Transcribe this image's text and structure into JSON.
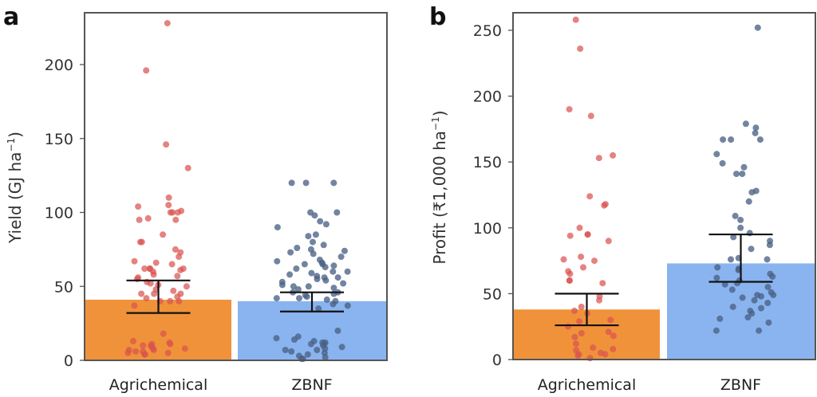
{
  "chart_data": [
    {
      "panel": "a",
      "type": "bar",
      "subtype": "bar with jittered points and error bars",
      "title": "",
      "xlabel": "",
      "ylabel": "Yield (GJ ha⁻¹)",
      "ylabel_parts": {
        "main": "Yield (GJ ha",
        "sup": "−1",
        "close": ")"
      },
      "ylim": [
        0,
        230
      ],
      "yticks": [
        0,
        50,
        100,
        150,
        200
      ],
      "grid": false,
      "legend": "none",
      "categories": [
        "Agrichemical",
        "ZBNF"
      ],
      "series": [
        {
          "name": "Agrichemical",
          "bar_value": 41,
          "error_low": 32,
          "error_high": 54,
          "bar_color": "#f0923a",
          "point_color": "#d9534f",
          "points": [
            228,
            196,
            146,
            130,
            110,
            105,
            104,
            101,
            100,
            100,
            100,
            96,
            95,
            95,
            85,
            80,
            80,
            75,
            73,
            70,
            67,
            66,
            65,
            62,
            62,
            62,
            62,
            61,
            60,
            58,
            57,
            56,
            55,
            53,
            52,
            51,
            50,
            48,
            47,
            45,
            45,
            45,
            43,
            42,
            40,
            40,
            40,
            37,
            18,
            13,
            12,
            11,
            11,
            10,
            10,
            9,
            8,
            8,
            7,
            7,
            6,
            6,
            5,
            5,
            4,
            4
          ]
        },
        {
          "name": "ZBNF",
          "bar_value": 40,
          "error_low": 33,
          "error_high": 46,
          "bar_color": "#8ab4ef",
          "point_color": "#4a6185",
          "points": [
            120,
            120,
            120,
            100,
            98,
            100,
            94,
            92,
            90,
            85,
            84,
            80,
            78,
            76,
            75,
            74,
            73,
            72,
            70,
            68,
            67,
            66,
            65,
            65,
            64,
            63,
            62,
            60,
            60,
            59,
            58,
            57,
            56,
            56,
            55,
            54,
            53,
            52,
            51,
            50,
            50,
            49,
            48,
            46,
            46,
            45,
            44,
            43,
            42,
            42,
            41,
            40,
            38,
            37,
            35,
            20,
            16,
            15,
            14,
            13,
            12,
            12,
            11,
            11,
            10,
            9,
            8,
            7,
            7,
            6,
            5,
            4,
            3,
            2,
            1,
            1
          ]
        }
      ]
    },
    {
      "panel": "b",
      "type": "bar",
      "subtype": "bar with jittered points and error bars",
      "title": "",
      "xlabel": "",
      "ylabel": "Profit (₹1,000 ha⁻¹)",
      "ylabel_parts": {
        "main": "Profit (₹1,000 ha",
        "sup": "−1",
        "close": ")"
      },
      "ylim": [
        0,
        262
      ],
      "yticks": [
        0,
        50,
        100,
        150,
        200,
        250
      ],
      "grid": false,
      "legend": "none",
      "categories": [
        "Agrichemical",
        "ZBNF"
      ],
      "series": [
        {
          "name": "Agrichemical",
          "bar_value": 38,
          "error_low": 26,
          "error_high": 50,
          "bar_color": "#f0923a",
          "point_color": "#d9534f",
          "points": [
            258,
            236,
            190,
            185,
            155,
            153,
            124,
            118,
            117,
            100,
            95,
            95,
            94,
            90,
            78,
            76,
            75,
            70,
            67,
            65,
            60,
            60,
            58,
            48,
            45,
            40,
            37,
            35,
            30,
            29,
            25,
            21,
            20,
            18,
            17,
            12,
            9,
            8,
            7,
            5,
            4,
            4,
            3,
            1
          ]
        },
        {
          "name": "ZBNF",
          "bar_value": 73,
          "error_low": 59,
          "error_high": 95,
          "bar_color": "#8ab4ef",
          "point_color": "#4a6185",
          "points": [
            252,
            179,
            176,
            172,
            167,
            167,
            167,
            156,
            149,
            146,
            141,
            141,
            128,
            127,
            120,
            109,
            106,
            100,
            96,
            93,
            90,
            87,
            84,
            77,
            76,
            76,
            70,
            69,
            68,
            65,
            63,
            62,
            60,
            58,
            57,
            55,
            53,
            51,
            49,
            49,
            48,
            47,
            45,
            43,
            40,
            39,
            37,
            35,
            32,
            31,
            28,
            22,
            22
          ]
        }
      ]
    }
  ],
  "panels": [
    {
      "letter": "a"
    },
    {
      "letter": "b"
    }
  ]
}
